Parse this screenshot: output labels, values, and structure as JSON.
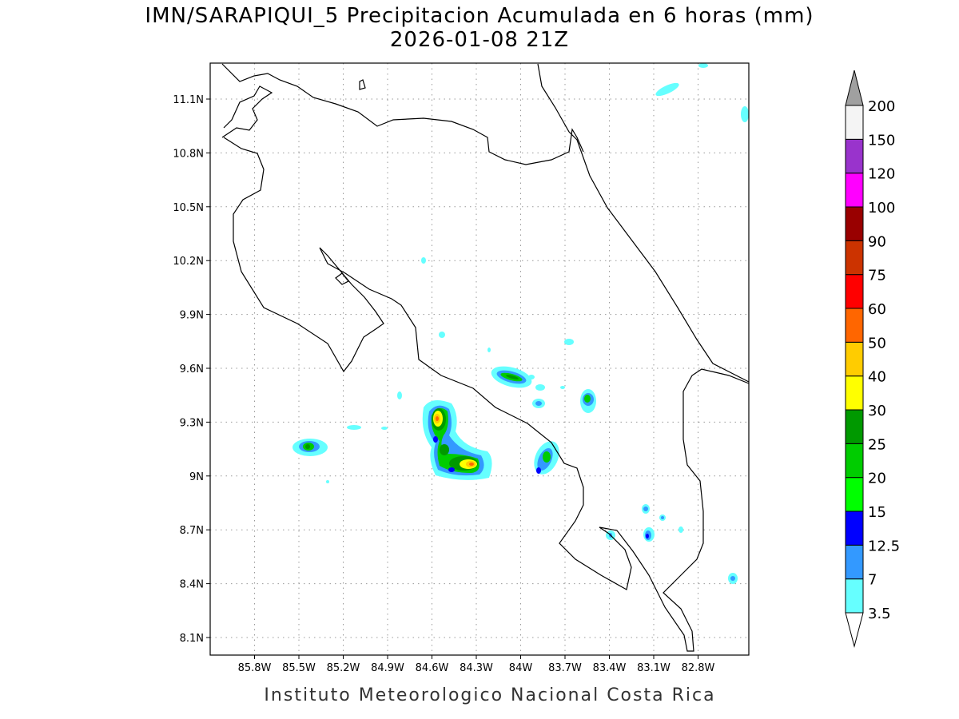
{
  "title": "IMN/SARAPIQUI_5 Precipitacion Acumulada en 6 horas (mm)",
  "subtitle": "2026-01-08 21Z",
  "map": {
    "x_ticks": [
      "85.8W",
      "85.5W",
      "85.2W",
      "84.9W",
      "84.6W",
      "84.3W",
      "84W",
      "83.7W",
      "83.4W",
      "83.1W",
      "82.8W"
    ],
    "y_ticks": [
      "11.1N",
      "10.8N",
      "10.5N",
      "10.2N",
      "9.9N",
      "9.6N",
      "9.3N",
      "9N",
      "8.7N",
      "8.4N",
      "8.1N"
    ],
    "grid": true
  },
  "colorbar": {
    "levels": [
      3.5,
      7,
      12.5,
      15,
      20,
      25,
      30,
      40,
      50,
      60,
      75,
      90,
      100,
      120,
      150,
      200
    ],
    "colors": [
      "#66ffff",
      "#3399ff",
      "#0000ff",
      "#00ff00",
      "#00cc00",
      "#009900",
      "#ffff00",
      "#ffcc00",
      "#ff6600",
      "#ff0000",
      "#cc3300",
      "#990000",
      "#ff00ff",
      "#9933cc",
      "#f4f4f4"
    ],
    "under_color": "#ffffff",
    "over_color": "#a0a0a0"
  },
  "footer": "Instituto Meteorologico Nacional Costa Rica"
}
